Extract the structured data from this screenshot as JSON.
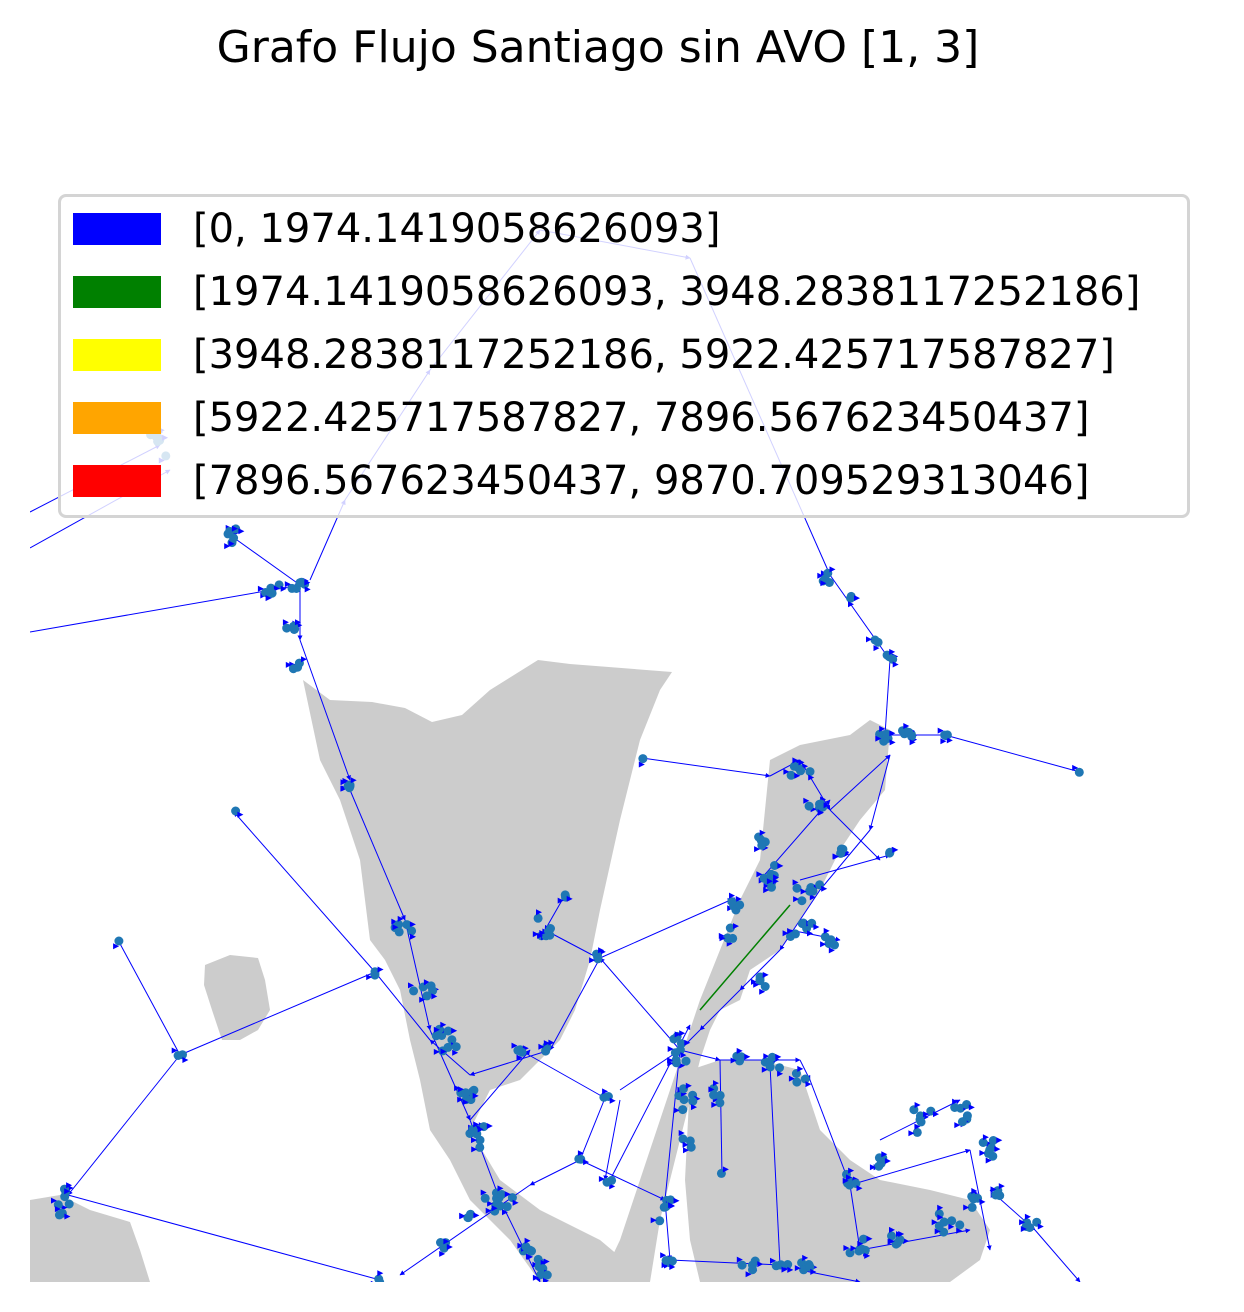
{
  "title": "Grafo Flujo Santiago sin AVO [1, 3]",
  "legend": {
    "items": [
      {
        "label": "[0, 1974.1419058626093]",
        "color": "#0000ff"
      },
      {
        "label": "[1974.1419058626093, 3948.2838117252186]",
        "color": "#008000"
      },
      {
        "label": "[3948.2838117252186, 5922.425717587827]",
        "color": "#ffff00"
      },
      {
        "label": "[5922.425717587827, 7896.567623450437]",
        "color": "#ffa500"
      },
      {
        "label": "[7896.567623450437, 9870.709529313046]",
        "color": "#ff0000"
      }
    ]
  },
  "colors": {
    "land": "#cccccc",
    "node": "#1f77b4",
    "edge": "#0000ff",
    "edge_high": "#008000",
    "arrow": "#0000ff",
    "background": "#ffffff"
  }
}
